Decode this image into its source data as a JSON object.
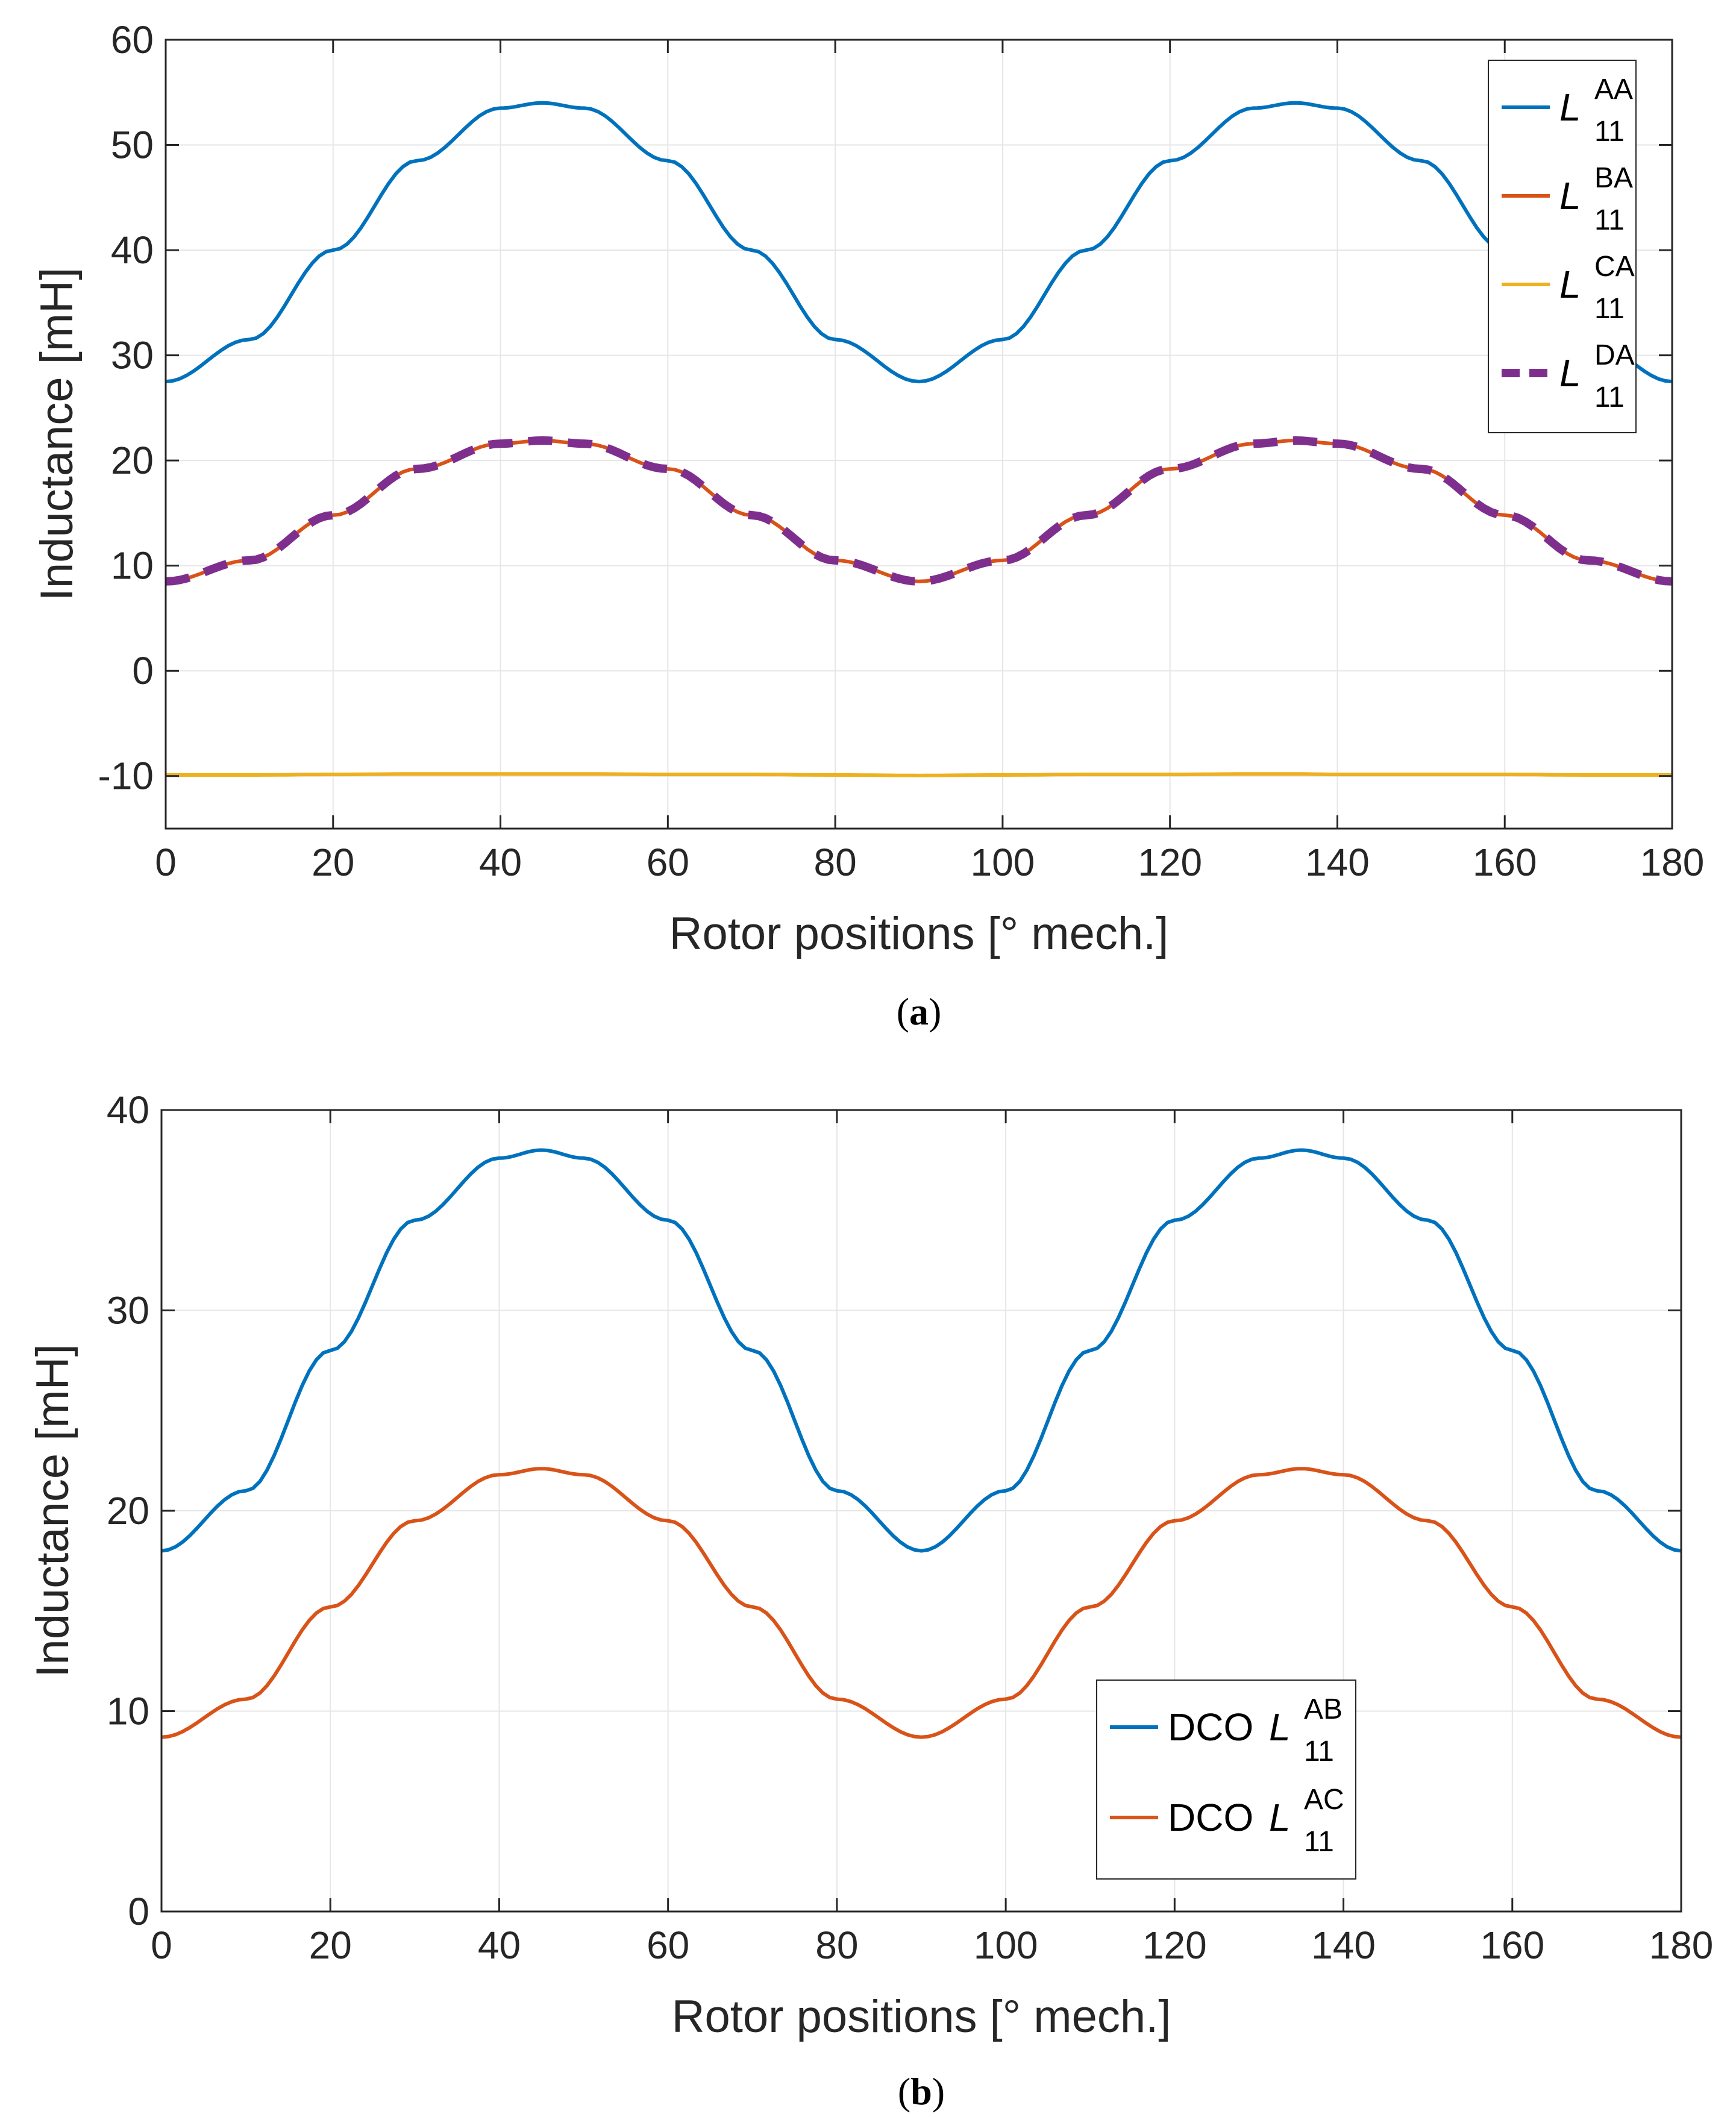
{
  "chart_data": [
    {
      "id": "a",
      "type": "line",
      "caption_letter": "a",
      "xlabel": "Rotor positions  [° mech.]",
      "ylabel": "Inductance [mH]",
      "xlim": [
        0,
        180
      ],
      "ylim": [
        -15,
        60
      ],
      "xticks": [
        0,
        20,
        40,
        60,
        80,
        100,
        120,
        140,
        160,
        180
      ],
      "yticks": [
        -10,
        0,
        10,
        20,
        30,
        40,
        50,
        60
      ],
      "grid": true,
      "legend_position": "top-right",
      "x": [
        0,
        10,
        20,
        30,
        40,
        45,
        50,
        60,
        70,
        80,
        90,
        100,
        110,
        120,
        130,
        135,
        140,
        150,
        160,
        170,
        180
      ],
      "series": [
        {
          "name": "L_11^AA",
          "legend_main": "L",
          "legend_sup": "AA",
          "legend_sub": "11",
          "color": "#0072BD",
          "dashed": false,
          "values": [
            27.5,
            31.5,
            40.0,
            48.5,
            53.5,
            54.0,
            53.5,
            48.5,
            40.0,
            31.5,
            27.5,
            31.5,
            40.0,
            48.5,
            53.5,
            54.0,
            53.5,
            48.5,
            40.0,
            31.5,
            27.5
          ]
        },
        {
          "name": "L_11^BA",
          "legend_main": "L",
          "legend_sup": "BA",
          "legend_sub": "11",
          "color": "#D95319",
          "dashed": false,
          "values": [
            8.5,
            10.5,
            14.8,
            19.2,
            21.6,
            21.9,
            21.6,
            19.2,
            14.8,
            10.5,
            8.5,
            10.5,
            14.8,
            19.2,
            21.6,
            21.9,
            21.6,
            19.2,
            14.8,
            10.5,
            8.5
          ]
        },
        {
          "name": "L_11^CA",
          "legend_main": "L",
          "legend_sup": "CA",
          "legend_sub": "11",
          "color": "#EDB120",
          "dashed": false,
          "values": [
            -9.9,
            -9.9,
            -9.85,
            -9.8,
            -9.8,
            -9.8,
            -9.8,
            -9.85,
            -9.85,
            -9.9,
            -9.95,
            -9.9,
            -9.85,
            -9.85,
            -9.8,
            -9.8,
            -9.85,
            -9.85,
            -9.85,
            -9.9,
            -9.9
          ]
        },
        {
          "name": "L_11^DA",
          "legend_main": "L",
          "legend_sup": "DA",
          "legend_sub": "11",
          "color": "#7E2F8E",
          "dashed": true,
          "values": [
            8.5,
            10.5,
            14.8,
            19.2,
            21.6,
            21.9,
            21.6,
            19.2,
            14.8,
            10.5,
            8.5,
            10.5,
            14.8,
            19.2,
            21.6,
            21.9,
            21.6,
            19.2,
            14.8,
            10.5,
            8.5
          ]
        }
      ]
    },
    {
      "id": "b",
      "type": "line",
      "caption_letter": "b",
      "xlabel": "Rotor positions  [° mech.]",
      "ylabel": "Inductance [mH]",
      "xlim": [
        0,
        180
      ],
      "ylim": [
        0,
        40
      ],
      "xticks": [
        0,
        20,
        40,
        60,
        80,
        100,
        120,
        140,
        160,
        180
      ],
      "yticks": [
        0,
        10,
        20,
        30,
        40
      ],
      "grid": true,
      "legend_position": "bottom-center-right",
      "x": [
        0,
        10,
        20,
        30,
        40,
        45,
        50,
        60,
        70,
        80,
        90,
        100,
        110,
        120,
        130,
        135,
        140,
        150,
        160,
        170,
        180
      ],
      "series": [
        {
          "name": "DCO L_11^AB",
          "legend_prefix": "DCO",
          "legend_main": "L",
          "legend_sup": "AB",
          "legend_sub": "11",
          "color": "#0072BD",
          "dashed": false,
          "values": [
            18.0,
            21.0,
            28.0,
            34.5,
            37.6,
            38.0,
            37.6,
            34.5,
            28.0,
            21.0,
            18.0,
            21.0,
            28.0,
            34.5,
            37.6,
            38.0,
            37.6,
            34.5,
            28.0,
            21.0,
            18.0
          ]
        },
        {
          "name": "DCO L_11^AC",
          "legend_prefix": "DCO",
          "legend_main": "L",
          "legend_sup": "AC",
          "legend_sub": "11",
          "color": "#D95319",
          "dashed": false,
          "values": [
            8.7,
            10.6,
            15.2,
            19.5,
            21.8,
            22.1,
            21.8,
            19.5,
            15.2,
            10.6,
            8.7,
            10.6,
            15.2,
            19.5,
            21.8,
            22.1,
            21.8,
            19.5,
            15.2,
            10.6,
            8.7
          ]
        }
      ]
    }
  ]
}
